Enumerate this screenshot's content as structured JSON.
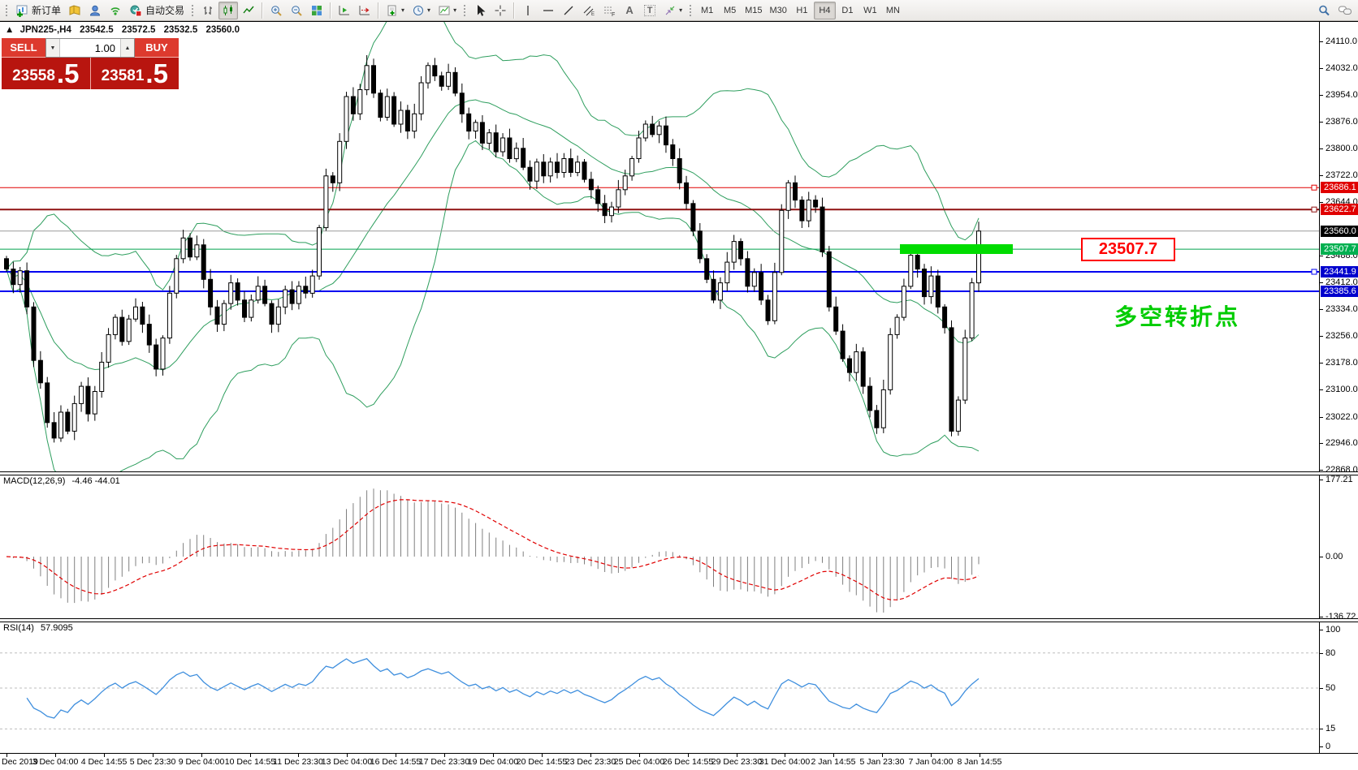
{
  "toolbar": {
    "new_order_label": "新订单",
    "autotrading_label": "自动交易",
    "timeframes": [
      "M1",
      "M5",
      "M15",
      "M30",
      "H1",
      "H4",
      "D1",
      "W1",
      "MN"
    ],
    "active_timeframe": "H4",
    "text_tool": "A",
    "label_tool": "T",
    "icon_names": [
      "new-order-icon",
      "history-book-icon",
      "expert-advisor-icon",
      "signals-icon",
      "autotrading-icon",
      "bar-chart-icon",
      "candlestick-chart-icon",
      "line-chart-icon",
      "zoom-in-icon",
      "zoom-out-icon",
      "tile-windows-icon",
      "auto-scroll-icon",
      "chart-shift-icon",
      "indicators-icon",
      "periods-icon",
      "templates-icon",
      "cursor-icon",
      "crosshair-icon",
      "vertical-line-icon",
      "horizontal-line-icon",
      "trendline-icon",
      "channel-icon",
      "fibonacci-icon",
      "text-icon",
      "label-icon",
      "arrows-icon",
      "search-icon",
      "chat-icon"
    ]
  },
  "chart_header": {
    "collapse_marker": "▲",
    "symbol_period": "JPN225-,H4",
    "open": "23542.5",
    "high": "23572.5",
    "low": "23532.5",
    "close": "23560.0"
  },
  "trade_panel": {
    "sell_label": "SELL",
    "buy_label": "BUY",
    "volume": "1.00",
    "sell_big": "23558",
    "sell_pip": ".5",
    "buy_big": "23581",
    "buy_pip": ".5"
  },
  "price_axis": {
    "ticks": [
      "24110.0",
      "24032.0",
      "23954.0",
      "23876.0",
      "23800.0",
      "23722.0",
      "23644.0",
      "23488.0",
      "23412.0",
      "23334.0",
      "23256.0",
      "23178.0",
      "23100.0",
      "23022.0",
      "22946.0",
      "22868.0"
    ]
  },
  "levels": [
    {
      "price": 23686.1,
      "label": "23686.1",
      "line_color": "#e00000",
      "label_bg": "#e00000",
      "weight": 1,
      "marker": true
    },
    {
      "price": 23622.7,
      "label": "23622.7",
      "line_color": "#8f1010",
      "label_bg": "#e00000",
      "weight": 2,
      "marker": true
    },
    {
      "price": 23560.0,
      "label": "23560.0",
      "line_color": "#9b9b9b",
      "label_bg": "#000000",
      "weight": 1,
      "marker": false
    },
    {
      "price": 23507.7,
      "label": "23507.7",
      "line_color": "#00a24d",
      "label_bg": "#00b050",
      "weight": 1,
      "marker": false
    },
    {
      "price": 23441.9,
      "label": "23441.9",
      "line_color": "#0000f0",
      "label_bg": "#0000cd",
      "weight": 2,
      "marker": true
    },
    {
      "price": 23385.6,
      "label": "23385.6",
      "line_color": "#0000f0",
      "label_bg": "#0000cd",
      "weight": 2,
      "marker": false
    }
  ],
  "annotations": {
    "highlight_bar": {
      "color": "#00dc00",
      "price": 23507.7
    },
    "price_callout": {
      "text": "23507.7",
      "color": "#ff0000"
    },
    "turning_point": {
      "text": "多空转折点",
      "color": "#00cc00"
    }
  },
  "macd_panel": {
    "name": "MACD(12,26,9)",
    "values": "-4.46 -44.01",
    "scale": [
      "177.21",
      "0.00",
      "-136.72"
    ]
  },
  "rsi_panel": {
    "name": "RSI(14)",
    "value": "57.9095",
    "scale": [
      "100",
      "80",
      "50",
      "15",
      "0"
    ],
    "levels": [
      80,
      50,
      15
    ]
  },
  "time_axis": [
    "Dec 2019",
    "3 Dec 04:00",
    "4 Dec 14:55",
    "5 Dec 23:30",
    "9 Dec 04:00",
    "10 Dec 14:55",
    "11 Dec 23:30",
    "13 Dec 04:00",
    "16 Dec 14:55",
    "17 Dec 23:30",
    "19 Dec 04:00",
    "20 Dec 14:55",
    "23 Dec 23:30",
    "25 Dec 04:00",
    "26 Dec 14:55",
    "29 Dec 23:30",
    "31 Dec 04:00",
    "2 Jan 14:55",
    "5 Jan 23:30",
    "7 Jan 04:00",
    "8 Jan 14:55"
  ],
  "chart_data": {
    "type": "candlestick",
    "symbol": "JPN225-",
    "timeframe": "H4",
    "visible_range": [
      22868.0,
      24110.0
    ],
    "closes": [
      23450,
      23405,
      23445,
      23340,
      23185,
      23120,
      23005,
      22960,
      23035,
      22980,
      23060,
      23110,
      23030,
      23095,
      23180,
      23260,
      23310,
      23240,
      23305,
      23340,
      23290,
      23230,
      23160,
      23250,
      23380,
      23480,
      23540,
      23485,
      23520,
      23420,
      23340,
      23290,
      23350,
      23410,
      23360,
      23310,
      23360,
      23400,
      23350,
      23290,
      23340,
      23390,
      23350,
      23400,
      23380,
      23430,
      23570,
      23720,
      23700,
      23820,
      23950,
      23900,
      23970,
      24040,
      23960,
      23890,
      23950,
      23870,
      23910,
      23850,
      23900,
      23990,
      24040,
      24010,
      23980,
      24020,
      23960,
      23900,
      23850,
      23875,
      23815,
      23845,
      23790,
      23830,
      23770,
      23800,
      23745,
      23705,
      23760,
      23720,
      23760,
      23730,
      23770,
      23730,
      23760,
      23710,
      23680,
      23640,
      23605,
      23630,
      23680,
      23720,
      23770,
      23830,
      23870,
      23840,
      23865,
      23810,
      23770,
      23700,
      23640,
      23560,
      23480,
      23420,
      23360,
      23410,
      23470,
      23530,
      23480,
      23400,
      23440,
      23360,
      23300,
      23440,
      23620,
      23700,
      23650,
      23590,
      23650,
      23630,
      23500,
      23340,
      23270,
      23190,
      23150,
      23210,
      23110,
      23040,
      22990,
      23100,
      23260,
      23310,
      23400,
      23490,
      23450,
      23370,
      23430,
      23340,
      23280,
      22980,
      23070,
      23250,
      23410,
      23560
    ],
    "overlays": [
      {
        "name": "Bollinger Bands",
        "period": 20,
        "deviation": 2,
        "color": "#2e9e5e"
      }
    ],
    "indicators": [
      {
        "name": "MACD",
        "params": "12,26,9"
      },
      {
        "name": "RSI",
        "params": "14"
      }
    ]
  }
}
